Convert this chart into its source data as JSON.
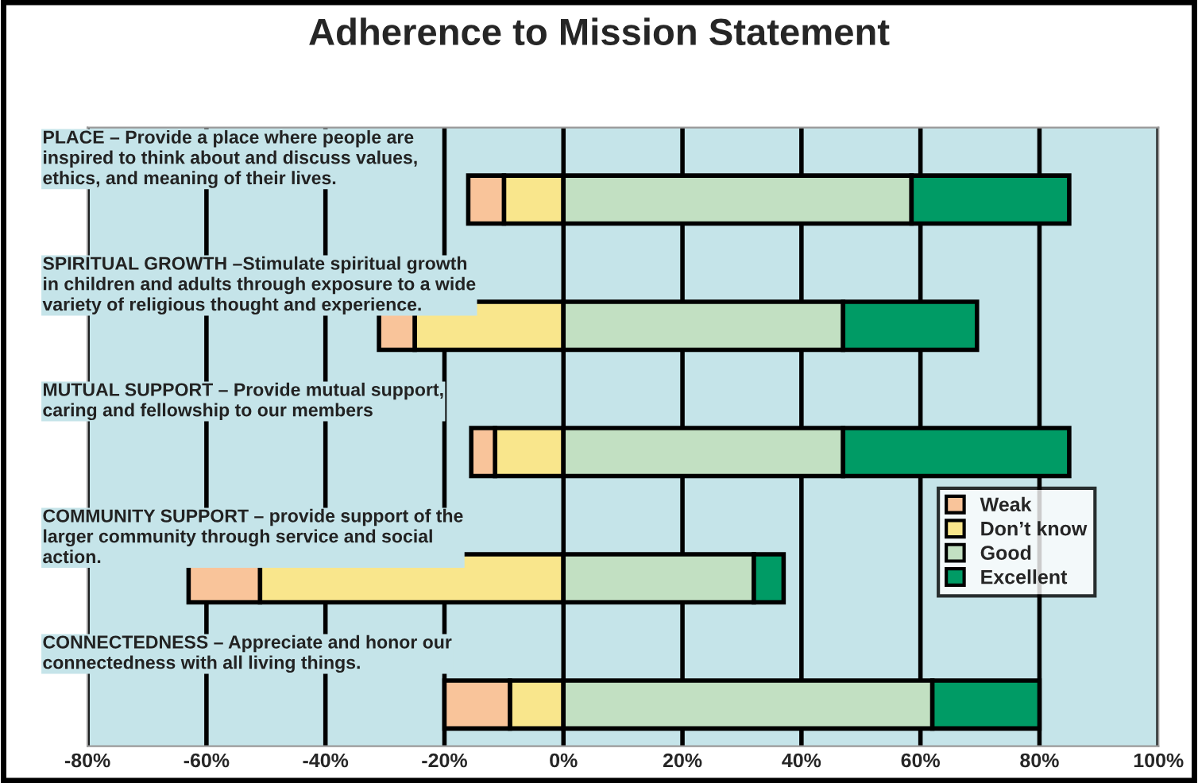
{
  "chart_data": {
    "type": "bar",
    "orientation": "horizontal",
    "stacked": true,
    "title": "Adherence to Mission Statement",
    "categories": [
      "PLACE – Provide a place where people are\ninspired to think about and discuss values,\nethics, and meaning of their lives.",
      "SPIRITUAL GROWTH –Stimulate spiritual growth\nin children and adults through exposure to a wide\nvariety of religious thought and experience.",
      "MUTUAL SUPPORT – Provide mutual support,\ncaring and fellowship to our members",
      "COMMUNITY SUPPORT – provide support of the\nlarger community through service and social\naction.",
      "CONNECTEDNESS – Appreciate and honor our\nconnectedness with all living things."
    ],
    "series": [
      {
        "name": "Don’t know",
        "color": "#f9e68c",
        "values": [
          -10,
          -25,
          -11.5,
          -51,
          -9
        ]
      },
      {
        "name": "Weak",
        "color": "#f9c49a",
        "values": [
          -6,
          -6,
          -4,
          -12,
          -11
        ]
      },
      {
        "name": "Good",
        "color": "#c2e0c2",
        "values": [
          58.5,
          47,
          47,
          32,
          62
        ]
      },
      {
        "name": "Excellent",
        "color": "#009b65",
        "values": [
          26.5,
          22.5,
          38,
          5,
          18
        ]
      }
    ],
    "xlim": [
      -80,
      100
    ],
    "xticks": [
      {
        "value": -80,
        "label": "-80%"
      },
      {
        "value": -60,
        "label": "-60%"
      },
      {
        "value": -40,
        "label": "-40%"
      },
      {
        "value": -20,
        "label": "-20%"
      },
      {
        "value": 0,
        "label": "0%"
      },
      {
        "value": 20,
        "label": "20%"
      },
      {
        "value": 40,
        "label": "40%"
      },
      {
        "value": 60,
        "label": "60%"
      },
      {
        "value": 80,
        "label": "80%"
      },
      {
        "value": 100,
        "label": "100%"
      }
    ],
    "grid": "x",
    "legend": "right"
  }
}
